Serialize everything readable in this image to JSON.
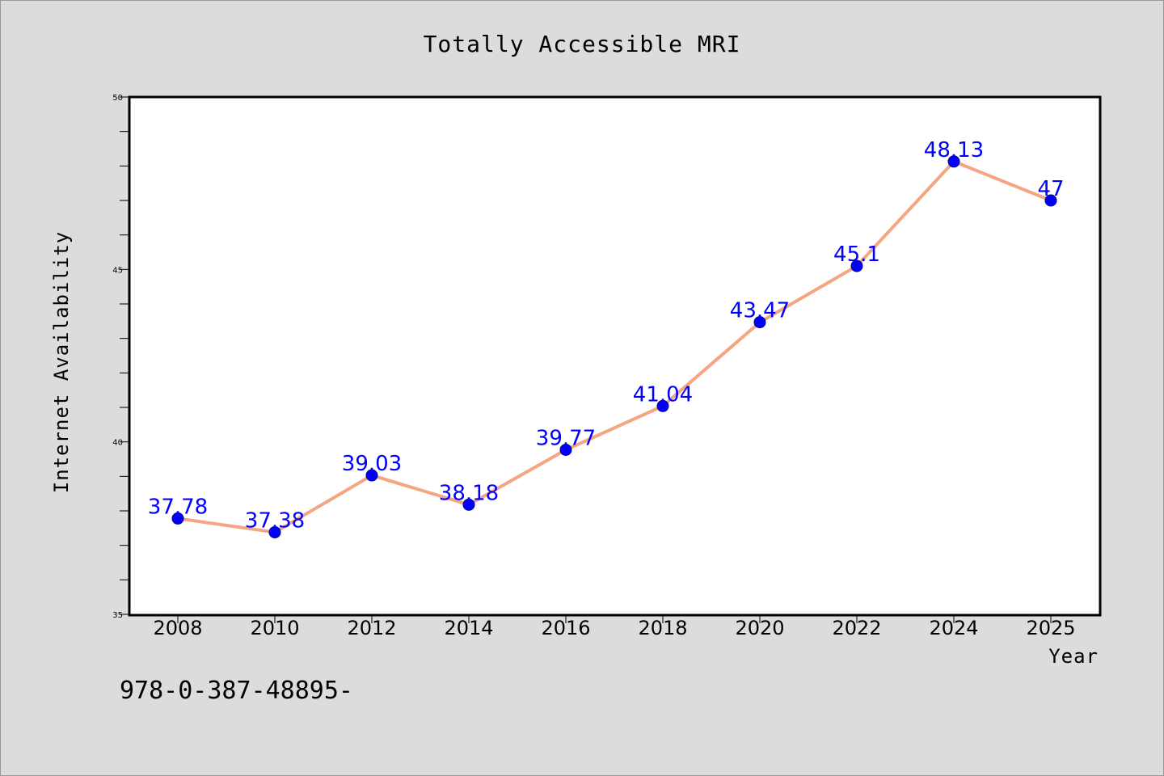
{
  "chart_data": {
    "type": "line",
    "title": "Totally Accessible MRI",
    "xlabel": "Year",
    "ylabel": "Internet Availability",
    "x": [
      "2008",
      "2010",
      "2012",
      "2014",
      "2016",
      "2018",
      "2020",
      "2022",
      "2024",
      "2025"
    ],
    "series": [
      {
        "values": [
          37.78,
          37.38,
          39.03,
          38.18,
          39.77,
          41.04,
          43.47,
          45.1,
          48.13,
          47
        ],
        "data_labels": [
          "37.78",
          "37.38",
          "39.03",
          "38.18",
          "39.77",
          "41.04",
          "43.47",
          "45.1",
          "48.13",
          "47"
        ],
        "line_color": "#f4a582",
        "marker_color": "#0000ff"
      }
    ],
    "ylim": [
      35,
      50
    ],
    "yticks": [
      "35",
      "40",
      "45",
      "50"
    ],
    "grid": false,
    "legend": "none"
  },
  "footer": {
    "isbn": "978-0-387-48895-"
  },
  "colors": {
    "background": "#dcdcdc",
    "plot_background": "#ffffff",
    "data_label": "#0000ff"
  }
}
